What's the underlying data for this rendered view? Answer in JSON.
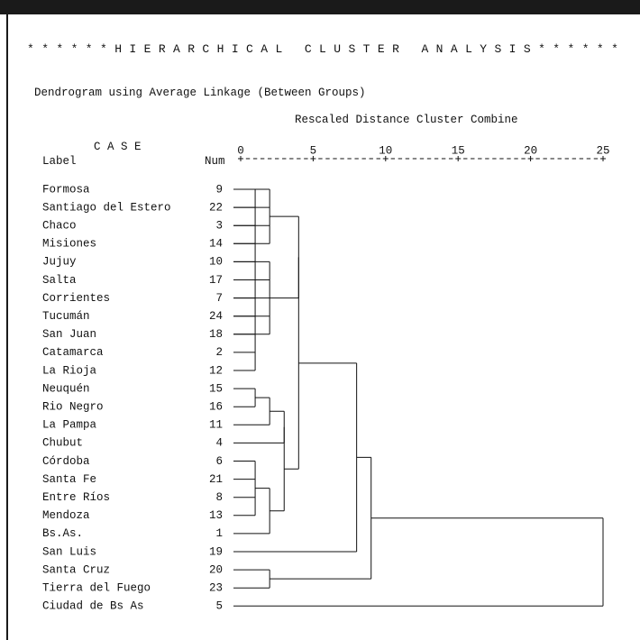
{
  "header": {
    "title": "* * * * * * H I E R A R C H I C A L   C L U S T E R   A N A L Y S I S * * * * * *",
    "subtitle": "Dendrogram using Average Linkage (Between Groups)",
    "scale_title": "Rescaled Distance Cluster Combine",
    "case_header": "C A S E",
    "label_header": "Label",
    "num_header": "Num",
    "axis_rule": "+---------+---------+---------+---------+---------+"
  },
  "chart_data": {
    "type": "dendrogram",
    "title": "Dendrogram using Average Linkage (Between Groups)",
    "xlabel": "Rescaled Distance Cluster Combine",
    "xlim": [
      0,
      25
    ],
    "x_ticks": [
      0,
      5,
      10,
      15,
      20,
      25
    ],
    "leaves": [
      {
        "label": "Formosa",
        "num": 9
      },
      {
        "label": "Santiago del Estero",
        "num": 22
      },
      {
        "label": "Chaco",
        "num": 3
      },
      {
        "label": "Misiones",
        "num": 14
      },
      {
        "label": "Jujuy",
        "num": 10
      },
      {
        "label": "Salta",
        "num": 17
      },
      {
        "label": "Corrientes",
        "num": 7
      },
      {
        "label": "Tucumán",
        "num": 24
      },
      {
        "label": "San Juan",
        "num": 18
      },
      {
        "label": "Catamarca",
        "num": 2
      },
      {
        "label": "La Rioja",
        "num": 12
      },
      {
        "label": "Neuquén",
        "num": 15
      },
      {
        "label": "Rio Negro",
        "num": 16
      },
      {
        "label": "La Pampa",
        "num": 11
      },
      {
        "label": "Chubut",
        "num": 4
      },
      {
        "label": "Córdoba",
        "num": 6
      },
      {
        "label": "Santa Fe",
        "num": 21
      },
      {
        "label": "Entre Ríos",
        "num": 8
      },
      {
        "label": "Mendoza",
        "num": 13
      },
      {
        "label": "Bs.As.",
        "num": 1
      },
      {
        "label": "San Luis",
        "num": 19
      },
      {
        "label": "Santa Cruz",
        "num": 20
      },
      {
        "label": "Tierra del Fuego",
        "num": 23
      },
      {
        "label": "Ciudad de Bs As",
        "num": 5
      }
    ],
    "merges": [
      {
        "id": "A",
        "children": [
          0,
          1,
          2,
          3,
          4,
          5,
          6,
          7,
          8,
          9,
          10
        ],
        "distance": 1.0
      },
      {
        "id": "B",
        "children": [
          0,
          1,
          2,
          3
        ],
        "distance": 2.0
      },
      {
        "id": "C",
        "children": [
          4,
          5,
          6,
          7,
          8
        ],
        "distance": 2.0
      },
      {
        "id": "D",
        "children": [
          "B",
          "C"
        ],
        "distance": 4.0
      },
      {
        "id": "E",
        "children": [
          11,
          12
        ],
        "distance": 1.0
      },
      {
        "id": "F",
        "children": [
          "E",
          13
        ],
        "distance": 2.0
      },
      {
        "id": "G",
        "children": [
          "F",
          14
        ],
        "distance": 3.0
      },
      {
        "id": "H",
        "children": [
          15,
          16,
          17,
          18
        ],
        "distance": 1.0
      },
      {
        "id": "I",
        "children": [
          "H",
          19
        ],
        "distance": 2.0
      },
      {
        "id": "J",
        "children": [
          "G",
          "I"
        ],
        "distance": 3.0
      },
      {
        "id": "K",
        "children": [
          "D",
          "J"
        ],
        "distance": 4.0
      },
      {
        "id": "L",
        "children": [
          "K",
          20
        ],
        "distance": 8.0
      },
      {
        "id": "M",
        "children": [
          21,
          22
        ],
        "distance": 2.0
      },
      {
        "id": "N",
        "children": [
          "L",
          "M"
        ],
        "distance": 9.0
      },
      {
        "id": "O",
        "children": [
          "N",
          23
        ],
        "distance": 25.0
      }
    ]
  }
}
